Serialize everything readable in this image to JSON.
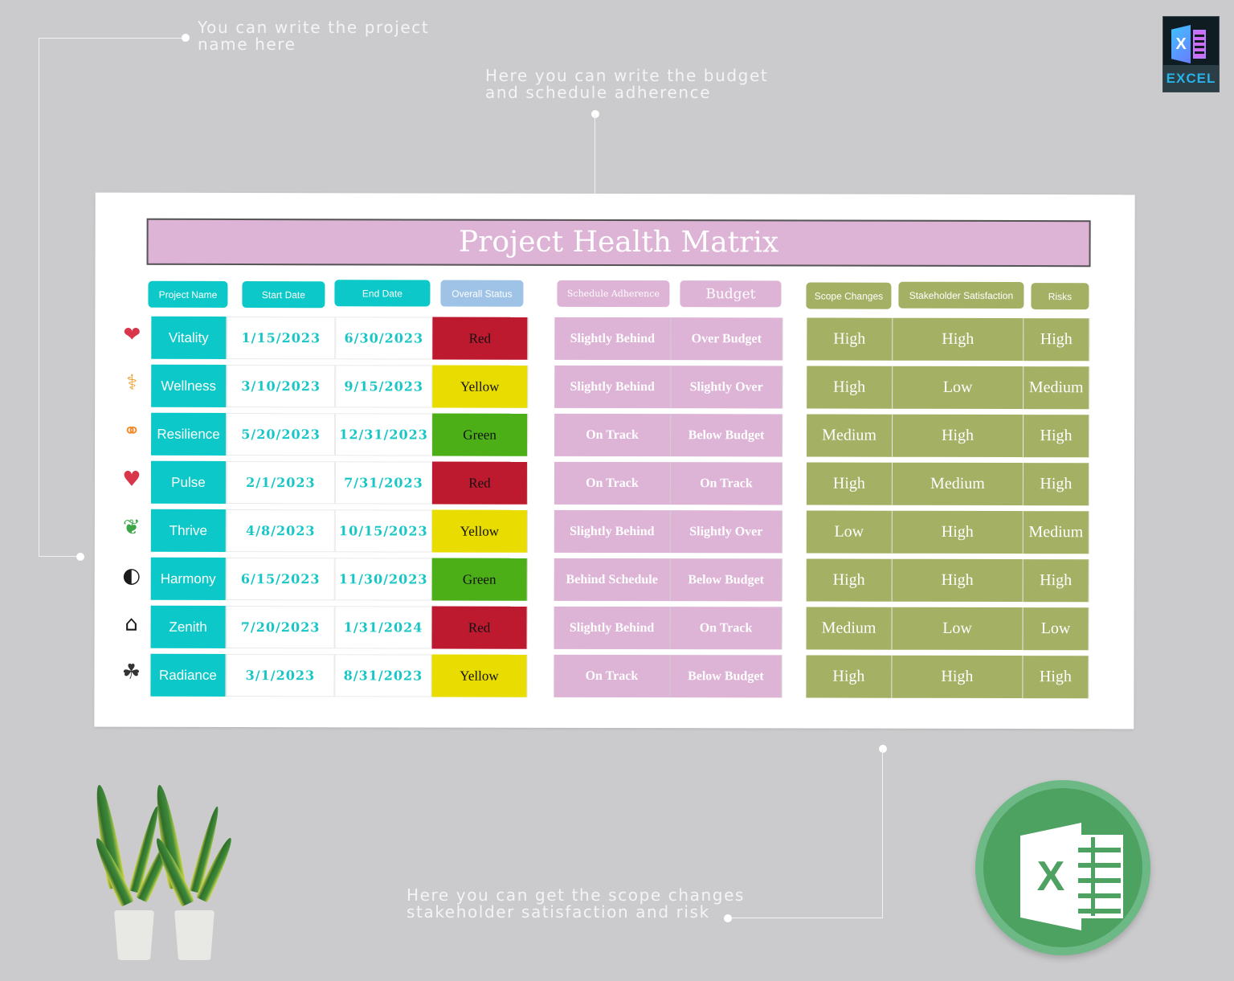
{
  "callouts": {
    "project_name": "You can write the project\nname here",
    "budget_schedule": "Here you can write the budget\nand schedule adherence",
    "scope_stakeholder_risk": "Here you can get the scope changes\nstakeholder satisfaction and risk"
  },
  "badge": {
    "letter": "X",
    "label": "EXCEL"
  },
  "logo": {
    "letter": "X"
  },
  "title": "Project Health Matrix",
  "headers": {
    "project_name": "Project Name",
    "start_date": "Start Date",
    "end_date": "End Date",
    "overall_status": "Overall Status",
    "schedule_adherence": "Schedule Adherence",
    "budget": "Budget",
    "scope_changes": "Scope Changes",
    "stakeholder_satisfaction": "Stakeholder Satisfaction",
    "risks": "Risks"
  },
  "colors": {
    "teal": "#0dc8c8",
    "pink": "#ddb3d6",
    "olive": "#a4b064",
    "status_blue": "#9fc3e6",
    "Red": "#bd1a30",
    "Yellow": "#e8dc00",
    "Green": "#4caf18"
  },
  "projects": [
    {
      "icon": "heart-muscle-icon",
      "glyph": "❤",
      "name": "Vitality",
      "start": "1/15/2023",
      "end": "6/30/2023",
      "status": "Red",
      "schedule": "Slightly Behind",
      "budget": "Over Budget",
      "scope": "High",
      "stakeholder": "High",
      "risk": "High"
    },
    {
      "icon": "wellness-icon",
      "glyph": "⚕",
      "name": "Wellness",
      "start": "3/10/2023",
      "end": "9/15/2023",
      "status": "Yellow",
      "schedule": "Slightly Behind",
      "budget": "Slightly Over",
      "scope": "High",
      "stakeholder": "Low",
      "risk": "Medium"
    },
    {
      "icon": "resilience-icon",
      "glyph": "⚭",
      "name": "Resilience",
      "start": "5/20/2023",
      "end": "12/31/2023",
      "status": "Green",
      "schedule": "On Track",
      "budget": "Below Budget",
      "scope": "Medium",
      "stakeholder": "High",
      "risk": "High"
    },
    {
      "icon": "heartbeat-icon",
      "glyph": "♥",
      "name": "Pulse",
      "start": "2/1/2023",
      "end": "7/31/2023",
      "status": "Red",
      "schedule": "On Track",
      "budget": "On Track",
      "scope": "High",
      "stakeholder": "Medium",
      "risk": "High"
    },
    {
      "icon": "sprout-icon",
      "glyph": "❦",
      "name": "Thrive",
      "start": "4/8/2023",
      "end": "10/15/2023",
      "status": "Yellow",
      "schedule": "Slightly Behind",
      "budget": "Slightly Over",
      "scope": "Low",
      "stakeholder": "High",
      "risk": "Medium"
    },
    {
      "icon": "harmony-swirl-icon",
      "glyph": "◐",
      "name": "Harmony",
      "start": "6/15/2023",
      "end": "11/30/2023",
      "status": "Green",
      "schedule": "Behind Schedule",
      "budget": "Below Budget",
      "scope": "High",
      "stakeholder": "High",
      "risk": "High"
    },
    {
      "icon": "hospital-bed-icon",
      "glyph": "⌂",
      "name": "Zenith",
      "start": "7/20/2023",
      "end": "1/31/2024",
      "status": "Red",
      "schedule": "Slightly Behind",
      "budget": "On Track",
      "scope": "Medium",
      "stakeholder": "Low",
      "risk": "Low"
    },
    {
      "icon": "caring-hands-icon",
      "glyph": "☘",
      "name": "Radiance",
      "start": "3/1/2023",
      "end": "8/31/2023",
      "status": "Yellow",
      "schedule": "On Track",
      "budget": "Below Budget",
      "scope": "High",
      "stakeholder": "High",
      "risk": "High"
    }
  ]
}
